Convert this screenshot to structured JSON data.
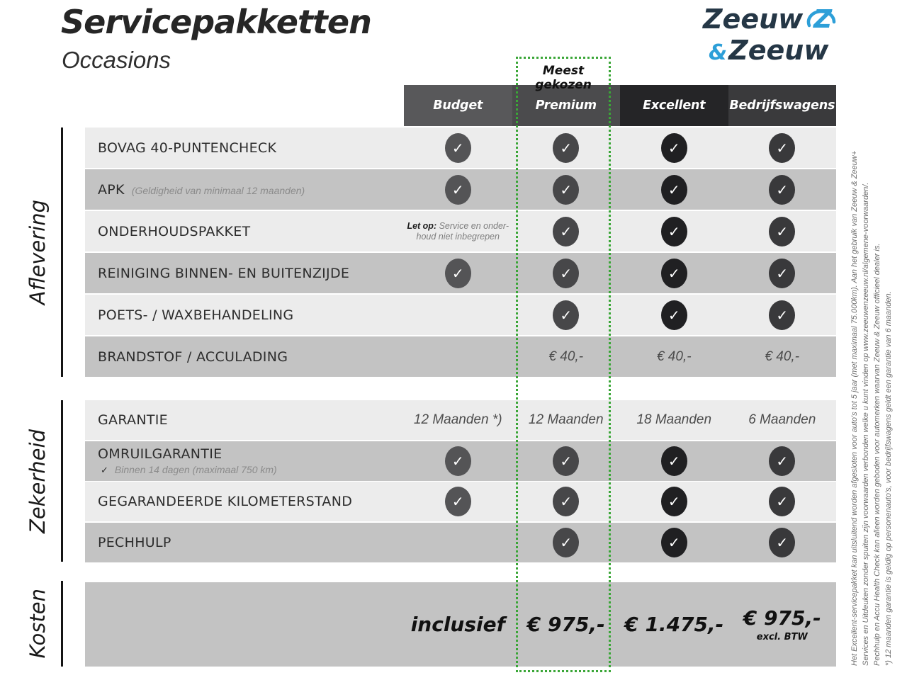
{
  "page": {
    "title": "Servicepakketten",
    "subtitle": "Occasions"
  },
  "logo": {
    "word1": "Zeeuw",
    "amp": "&",
    "word2": "Zeeuw",
    "navy": "#253746",
    "blue": "#2d9fd8"
  },
  "accent_green": "#3aa637",
  "most_chosen_label": "Meest gekozen",
  "icons": {
    "check_glyph": "✓"
  },
  "table": {
    "columns": [
      {
        "label": "Budget",
        "header_color": "#58585a",
        "check_color": "#545456"
      },
      {
        "label": "Premium",
        "header_color": "#4b4b4d",
        "check_color": "#474749"
      },
      {
        "label": "Excellent",
        "header_color": "#252527",
        "check_color": "#202022"
      },
      {
        "label": "Bedrijfswagens",
        "header_color": "#3a3a3c",
        "check_color": "#39393b"
      }
    ],
    "sections": [
      {
        "name": "Aflevering",
        "rows": [
          {
            "label": "BOVAG 40-PUNTENCHECK",
            "cells": [
              {
                "t": "check"
              },
              {
                "t": "check"
              },
              {
                "t": "check"
              },
              {
                "t": "check"
              }
            ]
          },
          {
            "label": "APK",
            "sub": "(Geldigheid van minimaal 12 maanden)",
            "sub_inline": true,
            "cells": [
              {
                "t": "check"
              },
              {
                "t": "check"
              },
              {
                "t": "check"
              },
              {
                "t": "check"
              }
            ]
          },
          {
            "label": "ONDERHOUDSPAKKET",
            "cells": [
              {
                "t": "note",
                "bold": "Let op:",
                "lines": [
                  "Service en onder-",
                  "houd niet inbegrepen"
                ]
              },
              {
                "t": "check"
              },
              {
                "t": "check"
              },
              {
                "t": "check"
              }
            ]
          },
          {
            "label": "REINIGING BINNEN- EN BUITENZIJDE",
            "cells": [
              {
                "t": "check"
              },
              {
                "t": "check"
              },
              {
                "t": "check"
              },
              {
                "t": "check"
              }
            ]
          },
          {
            "label": "POETS- / WAXBEHANDELING",
            "cells": [
              {
                "t": "empty"
              },
              {
                "t": "check"
              },
              {
                "t": "check"
              },
              {
                "t": "check"
              }
            ]
          },
          {
            "label": "BRANDSTOF / ACCULADING",
            "cells": [
              {
                "t": "empty"
              },
              {
                "t": "text",
                "v": "€ 40,-"
              },
              {
                "t": "text",
                "v": "€ 40,-"
              },
              {
                "t": "text",
                "v": "€ 40,-"
              }
            ]
          }
        ]
      },
      {
        "name": "Zekerheid",
        "rows": [
          {
            "label": "GARANTIE",
            "cells": [
              {
                "t": "text",
                "v": "12 Maanden *)"
              },
              {
                "t": "text",
                "v": "12 Maanden"
              },
              {
                "t": "text",
                "v": "18 Maanden"
              },
              {
                "t": "text",
                "v": "6 Maanden"
              }
            ]
          },
          {
            "label": "OMRUILGARANTIE",
            "sub": "Binnen 14 dagen (maximaal 750 km)",
            "sub_check": true,
            "cells": [
              {
                "t": "check"
              },
              {
                "t": "check"
              },
              {
                "t": "check"
              },
              {
                "t": "check"
              }
            ]
          },
          {
            "label": "GEGARANDEERDE KILOMETERSTAND",
            "cells": [
              {
                "t": "check"
              },
              {
                "t": "check"
              },
              {
                "t": "check"
              },
              {
                "t": "check"
              }
            ]
          },
          {
            "label": "PECHHULP",
            "cells": [
              {
                "t": "empty"
              },
              {
                "t": "check"
              },
              {
                "t": "check"
              },
              {
                "t": "check"
              }
            ]
          }
        ]
      },
      {
        "name": "Kosten",
        "rows": [
          {
            "label": "",
            "cells": [
              {
                "t": "price",
                "v": "inclusief"
              },
              {
                "t": "price",
                "v": "€ 975,-"
              },
              {
                "t": "price",
                "v": "€ 1.475,-"
              },
              {
                "t": "price",
                "v": "€ 975,-",
                "sub": "excl. BTW"
              }
            ]
          }
        ]
      }
    ]
  },
  "footnotes": [
    "Het Excellent-servicepakket kan uitsluitend worden afgesloten voor auto's tot 5 jaar (met maximaal 75.000km). Aan het gebruik van Zeeuw & Zeeuw+",
    "Services en Uitdeuken zonder spuiten zijn voorwaarden verbonden welke u kunt vinden op www.zeeuwenzeeuw.nl/algemene-voorwaarden/.",
    "Pechhulp en Accu Health Check kan alleen worden geboden voor automerken waarvan Zeeuw & Zeeuw officieel dealer is.",
    "*) 12 maanden garantie is geldig op personenauto's, voor bedrijfswagens geldt een garantie van 6 maanden."
  ]
}
